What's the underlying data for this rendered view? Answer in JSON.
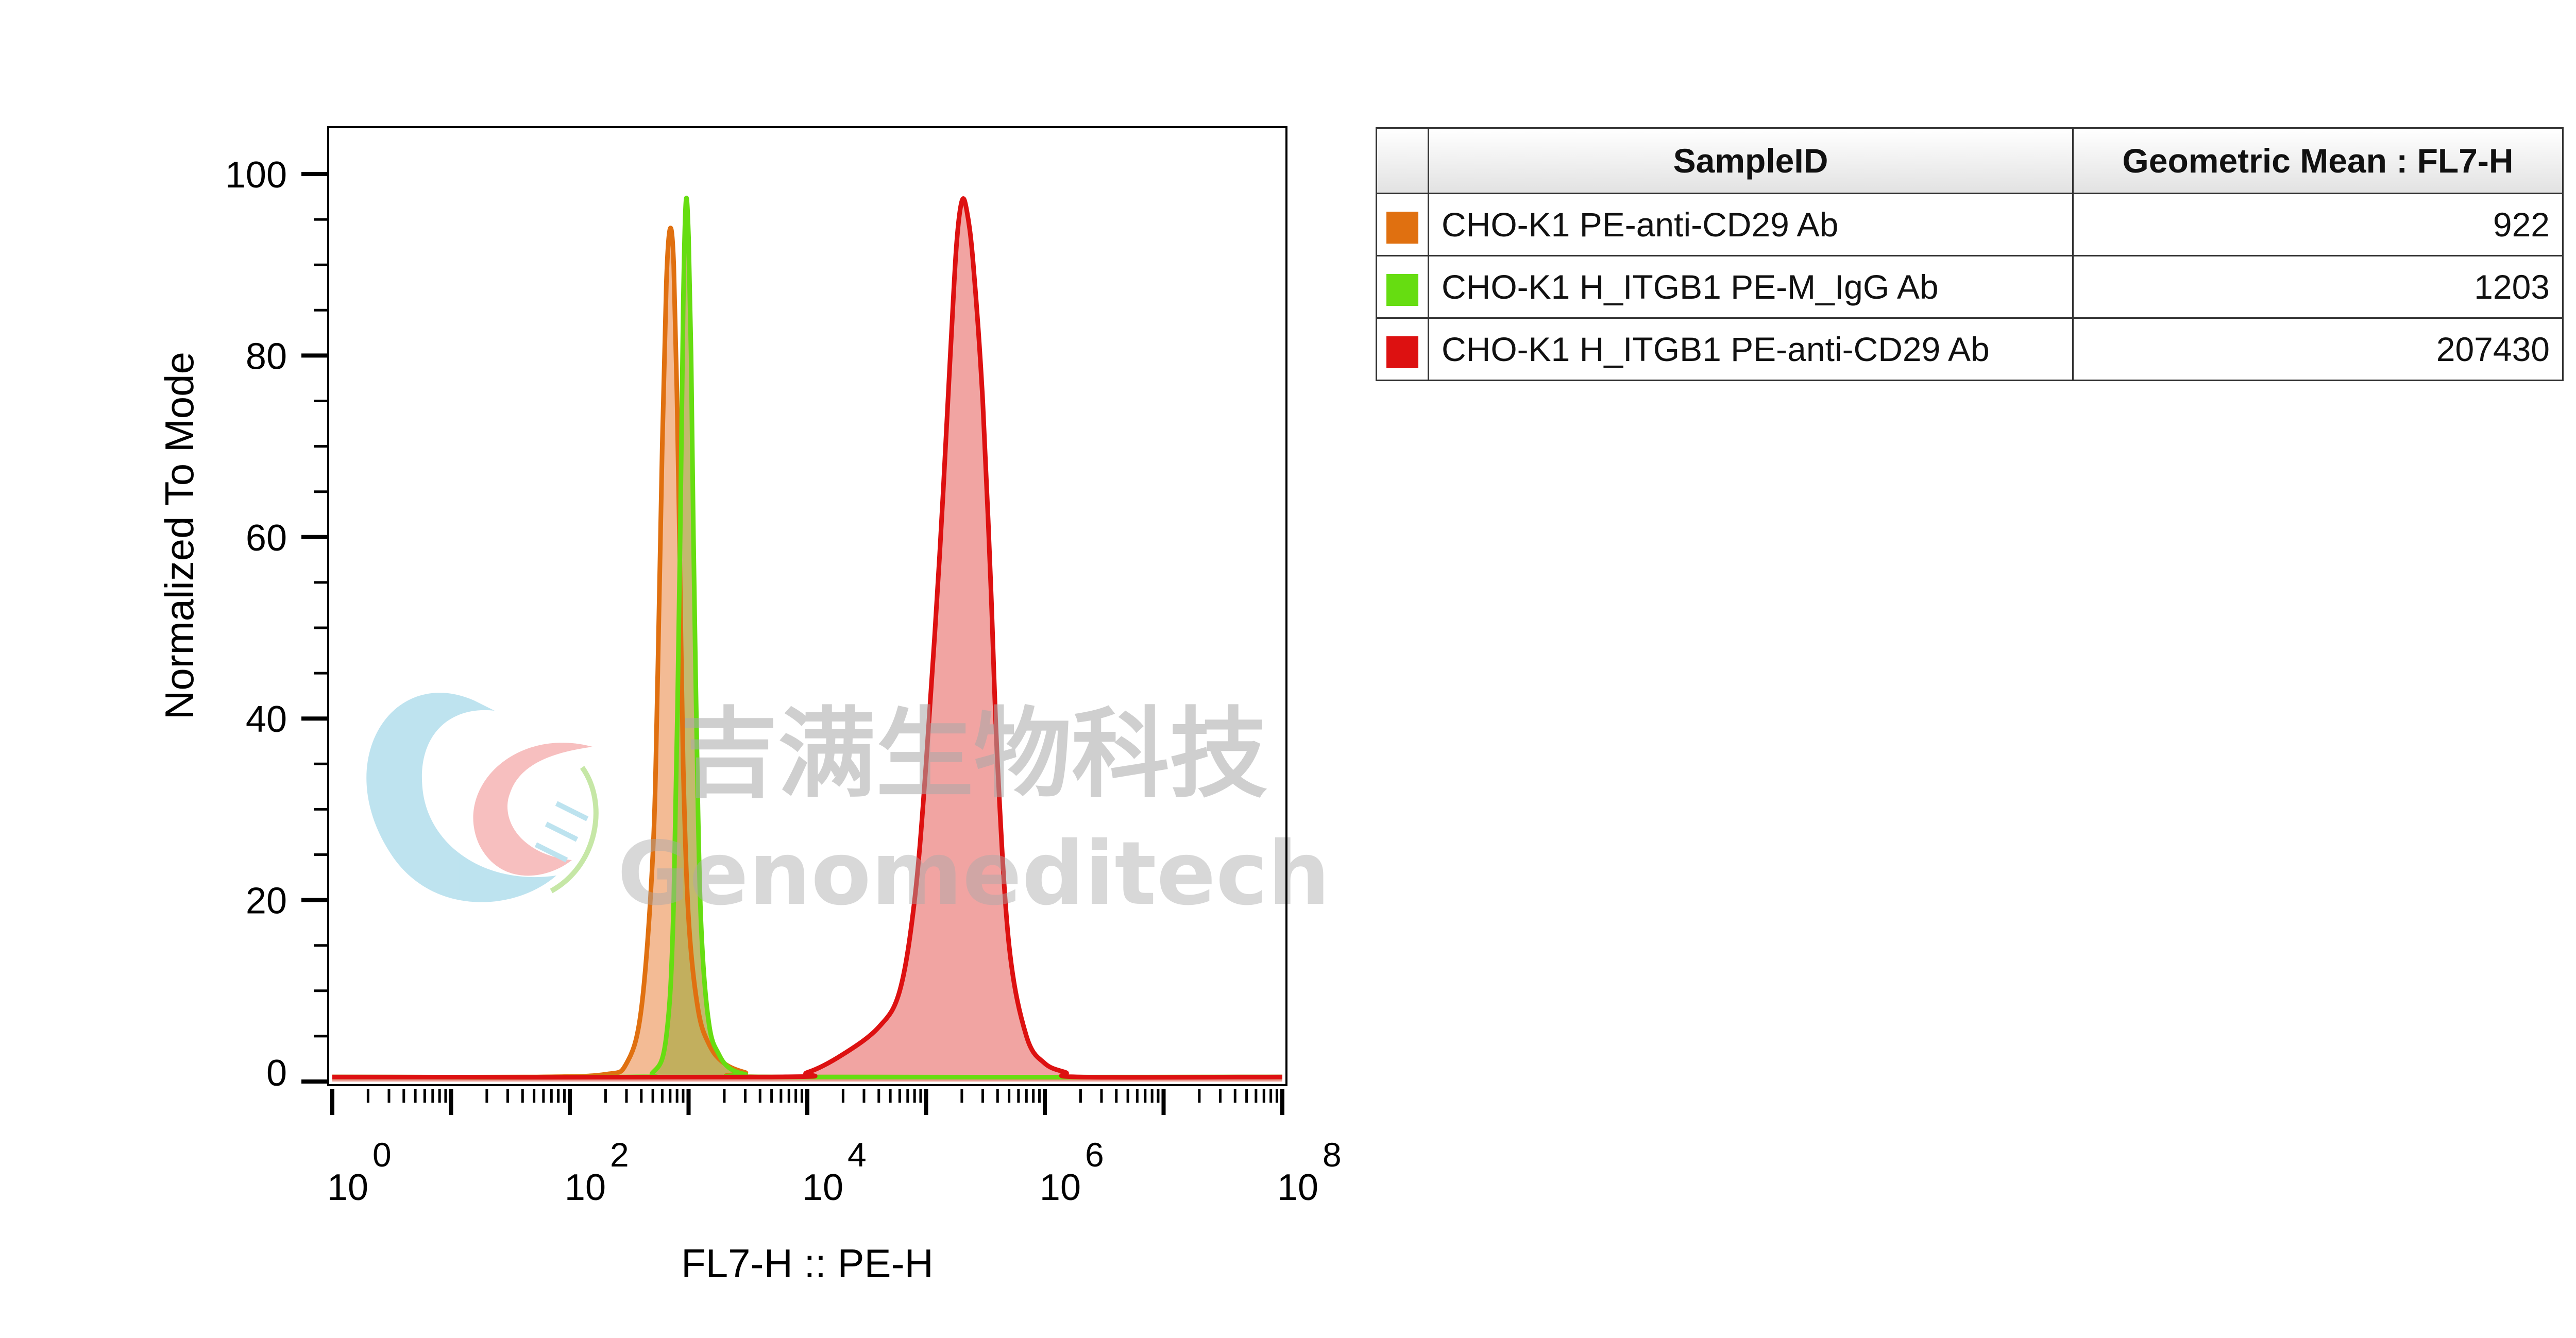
{
  "chart_data": {
    "type": "histogram",
    "xlabel": "FL7-H :: PE-H",
    "ylabel": "Normalized To Mode",
    "x_scale": "log",
    "xlim": [
      1,
      100000000
    ],
    "ylim": [
      0,
      100
    ],
    "x_tick_labels": [
      {
        "base": "10",
        "exp": "0"
      },
      {
        "base": "10",
        "exp": "2"
      },
      {
        "base": "10",
        "exp": "4"
      },
      {
        "base": "10",
        "exp": "6"
      },
      {
        "base": "10",
        "exp": "8"
      }
    ],
    "y_ticks": [
      0,
      20,
      40,
      60,
      80,
      100
    ],
    "series": [
      {
        "name": "CHO-K1 PE-anti-CD29 Ab",
        "color": "#e07010",
        "fill": "#f2b48a",
        "x": [
          1,
          50,
          200,
          300,
          400,
          500,
          550,
          600,
          650,
          700,
          750,
          800,
          850,
          900,
          1000,
          1200,
          1500,
          2000,
          3000,
          5000,
          100000000
        ],
        "y": [
          0.5,
          0.5,
          0.8,
          2,
          8,
          25,
          45,
          70,
          88,
          94,
          90,
          75,
          55,
          35,
          18,
          8,
          4,
          2,
          1,
          0.5,
          0.5
        ]
      },
      {
        "name": "CHO-K1 H_ITGB1 PE-M_IgG Ab",
        "color": "#66dd11",
        "fill": "#b8ad55",
        "x": [
          1,
          300,
          500,
          650,
          750,
          850,
          900,
          950,
          1000,
          1050,
          1100,
          1200,
          1300,
          1500,
          1800,
          2200,
          3000,
          5000,
          100000000
        ],
        "y": [
          0.5,
          0.5,
          1,
          5,
          20,
          60,
          85,
          97,
          93,
          80,
          60,
          30,
          15,
          6,
          3,
          1.5,
          0.8,
          0.5,
          0.5
        ]
      },
      {
        "name": "CHO-K1 H_ITGB1 PE-anti-CD29 Ab",
        "color": "#dd1111",
        "fill": "#f09a98",
        "x": [
          1,
          5000,
          10000,
          20000,
          40000,
          60000,
          80000,
          100000,
          130000,
          160000,
          180000,
          200000,
          220000,
          250000,
          300000,
          350000,
          400000,
          500000,
          700000,
          1000000,
          1500000,
          2000000,
          100000000
        ],
        "y": [
          0.5,
          0.5,
          1,
          3,
          6,
          10,
          20,
          35,
          58,
          80,
          92,
          97,
          96,
          90,
          75,
          55,
          35,
          15,
          5,
          2,
          1,
          0.5,
          0.5
        ]
      }
    ],
    "legend_table": {
      "headers": [
        "SampleID",
        "Geometric Mean : FL7-H"
      ],
      "rows": [
        {
          "color": "#e07010",
          "name": "CHO-K1 PE-anti-CD29 Ab",
          "value": "922"
        },
        {
          "color": "#66dd11",
          "name": "CHO-K1 H_ITGB1 PE-M_IgG Ab",
          "value": "1203"
        },
        {
          "color": "#dd1111",
          "name": "CHO-K1 H_ITGB1 PE-anti-CD29 Ab",
          "value": "207430"
        }
      ]
    }
  },
  "watermark": {
    "chinese": "吉满生物科技",
    "english": "Genomeditech"
  }
}
